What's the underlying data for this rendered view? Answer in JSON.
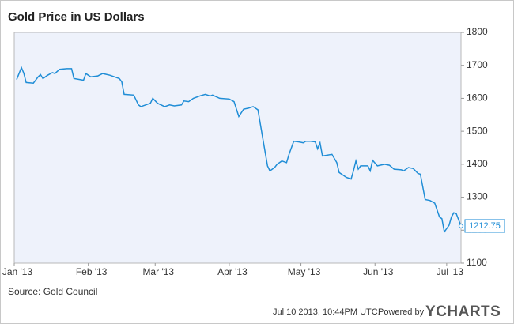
{
  "chart_data": {
    "type": "line",
    "title": "Gold Price in US Dollars",
    "x": [
      "2013-01-02",
      "2013-01-04",
      "2013-01-05",
      "2013-01-06",
      "2013-01-09",
      "2013-01-11",
      "2013-01-12",
      "2013-01-13",
      "2013-01-15",
      "2013-01-17",
      "2013-01-18",
      "2013-01-20",
      "2013-01-23",
      "2013-01-25",
      "2013-01-26",
      "2013-01-30",
      "2013-01-31",
      "2013-02-02",
      "2013-02-05",
      "2013-02-07",
      "2013-02-10",
      "2013-02-14",
      "2013-02-15",
      "2013-02-16",
      "2013-02-20",
      "2013-02-22",
      "2013-02-23",
      "2013-02-27",
      "2013-02-28",
      "2013-03-02",
      "2013-03-05",
      "2013-03-07",
      "2013-03-09",
      "2013-03-12",
      "2013-03-13",
      "2013-03-15",
      "2013-03-17",
      "2013-03-20",
      "2013-03-22",
      "2013-03-24",
      "2013-03-25",
      "2013-03-28",
      "2013-04-01",
      "2013-04-03",
      "2013-04-05",
      "2013-04-07",
      "2013-04-09",
      "2013-04-11",
      "2013-04-13",
      "2013-04-15",
      "2013-04-17",
      "2013-04-18",
      "2013-04-20",
      "2013-04-21",
      "2013-04-23",
      "2013-04-25",
      "2013-04-26",
      "2013-04-28",
      "2013-04-30",
      "2013-05-02",
      "2013-05-03",
      "2013-05-05",
      "2013-05-07",
      "2013-05-08",
      "2013-05-09",
      "2013-05-10",
      "2013-05-14",
      "2013-05-16",
      "2013-05-17",
      "2013-05-20",
      "2013-05-22",
      "2013-05-23",
      "2013-05-24",
      "2013-05-25",
      "2013-05-26",
      "2013-05-29",
      "2013-05-30",
      "2013-05-31",
      "2013-06-02",
      "2013-06-05",
      "2013-06-07",
      "2013-06-09",
      "2013-06-12",
      "2013-06-13",
      "2013-06-15",
      "2013-06-17",
      "2013-06-19",
      "2013-06-20",
      "2013-06-22",
      "2013-06-24",
      "2013-06-26",
      "2013-06-28",
      "2013-06-29",
      "2013-06-30",
      "2013-07-02",
      "2013-07-03",
      "2013-07-04",
      "2013-07-05",
      "2013-07-07"
    ],
    "values": [
      1657,
      1693,
      1676,
      1648,
      1646,
      1665,
      1672,
      1660,
      1670,
      1678,
      1675,
      1688,
      1690,
      1690,
      1660,
      1655,
      1675,
      1665,
      1668,
      1675,
      1670,
      1660,
      1650,
      1612,
      1610,
      1580,
      1575,
      1585,
      1600,
      1585,
      1575,
      1580,
      1577,
      1580,
      1592,
      1590,
      1600,
      1608,
      1612,
      1607,
      1610,
      1600,
      1598,
      1590,
      1545,
      1567,
      1570,
      1575,
      1565,
      1480,
      1395,
      1380,
      1390,
      1400,
      1410,
      1405,
      1430,
      1470,
      1468,
      1465,
      1470,
      1470,
      1468,
      1447,
      1465,
      1425,
      1430,
      1405,
      1375,
      1360,
      1355,
      1380,
      1410,
      1385,
      1395,
      1395,
      1380,
      1412,
      1395,
      1400,
      1397,
      1385,
      1383,
      1380,
      1390,
      1387,
      1372,
      1370,
      1293,
      1290,
      1282,
      1240,
      1235,
      1195,
      1215,
      1240,
      1253,
      1250,
      1212.75
    ],
    "color": "#1f8dd6",
    "xlim": [
      "2013-01-01",
      "2013-07-07"
    ],
    "xticks": [
      {
        "value": "2013-01-01",
        "label": "Jan '13"
      },
      {
        "value": "2013-02-01",
        "label": "Feb '13"
      },
      {
        "value": "2013-03-01",
        "label": "Mar '13"
      },
      {
        "value": "2013-04-01",
        "label": "Apr '13"
      },
      {
        "value": "2013-05-01",
        "label": "May '13"
      },
      {
        "value": "2013-06-01",
        "label": "Jun '13"
      },
      {
        "value": "2013-07-01",
        "label": "Jul '13"
      }
    ],
    "ylim": [
      1100,
      1800
    ],
    "yticks": [
      1100,
      1200,
      1300,
      1400,
      1500,
      1600,
      1700,
      1800
    ],
    "grid": false,
    "source": "Source: Gold Council",
    "timestamp": "Jul 10 2013, 10:44PM UTC.",
    "powered_by": "Powered by",
    "brand": "YCHARTS"
  }
}
